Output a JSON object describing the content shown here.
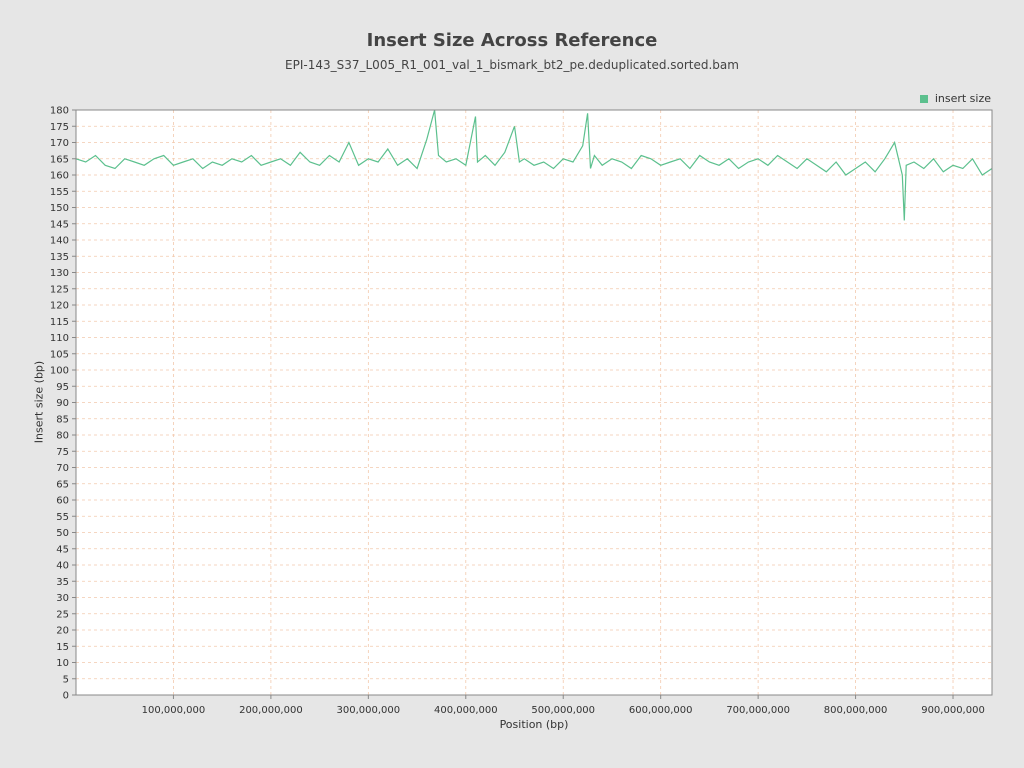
{
  "chart_data": {
    "type": "line",
    "title": "Insert Size Across Reference",
    "subtitle": "EPI-143_S37_L005_R1_001_val_1_bismark_bt2_pe.deduplicated.sorted.bam",
    "xlabel": "Position (bp)",
    "ylabel": "Insert size (bp)",
    "xlim": [
      0,
      940000000
    ],
    "ylim": [
      0,
      180
    ],
    "x_ticks": [
      100000000,
      200000000,
      300000000,
      400000000,
      500000000,
      600000000,
      700000000,
      800000000,
      900000000
    ],
    "x_tick_labels": [
      "100,000,000",
      "200,000,000",
      "300,000,000",
      "400,000,000",
      "500,000,000",
      "600,000,000",
      "700,000,000",
      "800,000,000",
      "900,000,000"
    ],
    "y_ticks": [
      0,
      5,
      10,
      15,
      20,
      25,
      30,
      35,
      40,
      45,
      50,
      55,
      60,
      65,
      70,
      75,
      80,
      85,
      90,
      95,
      100,
      105,
      110,
      115,
      120,
      125,
      130,
      135,
      140,
      145,
      150,
      155,
      160,
      165,
      170,
      175,
      180
    ],
    "grid": true,
    "legend_position": "top-right",
    "series": [
      {
        "name": "insert size",
        "color": "#5cc08e",
        "x": [
          0,
          10000000,
          20000000,
          30000000,
          40000000,
          50000000,
          60000000,
          70000000,
          80000000,
          90000000,
          100000000,
          110000000,
          120000000,
          130000000,
          140000000,
          150000000,
          160000000,
          170000000,
          180000000,
          190000000,
          200000000,
          210000000,
          220000000,
          230000000,
          240000000,
          250000000,
          260000000,
          270000000,
          280000000,
          290000000,
          300000000,
          310000000,
          320000000,
          330000000,
          340000000,
          350000000,
          360000000,
          368000000,
          372000000,
          380000000,
          390000000,
          400000000,
          410000000,
          412000000,
          416000000,
          420000000,
          430000000,
          440000000,
          450000000,
          455000000,
          460000000,
          470000000,
          480000000,
          490000000,
          500000000,
          510000000,
          520000000,
          525000000,
          528000000,
          532000000,
          540000000,
          550000000,
          560000000,
          570000000,
          580000000,
          590000000,
          600000000,
          610000000,
          620000000,
          630000000,
          640000000,
          650000000,
          660000000,
          670000000,
          680000000,
          690000000,
          700000000,
          710000000,
          720000000,
          730000000,
          740000000,
          750000000,
          760000000,
          770000000,
          780000000,
          790000000,
          800000000,
          810000000,
          820000000,
          830000000,
          840000000,
          848000000,
          850000000,
          852000000,
          860000000,
          870000000,
          880000000,
          890000000,
          900000000,
          910000000,
          920000000,
          930000000,
          940000000
        ],
        "y": [
          165,
          164,
          166,
          163,
          162,
          165,
          164,
          163,
          165,
          166,
          163,
          164,
          165,
          162,
          164,
          163,
          165,
          164,
          166,
          163,
          164,
          165,
          163,
          167,
          164,
          163,
          166,
          164,
          170,
          163,
          165,
          164,
          168,
          163,
          165,
          162,
          171,
          180,
          166,
          164,
          165,
          163,
          178,
          164,
          165,
          166,
          163,
          167,
          175,
          164,
          165,
          163,
          164,
          162,
          165,
          164,
          169,
          179,
          162,
          166,
          163,
          165,
          164,
          162,
          166,
          165,
          163,
          164,
          165,
          162,
          166,
          164,
          163,
          165,
          162,
          164,
          165,
          163,
          166,
          164,
          162,
          165,
          163,
          161,
          164,
          160,
          162,
          164,
          161,
          165,
          170,
          160,
          146,
          163,
          164,
          162,
          165,
          161,
          163,
          162,
          165,
          160,
          162
        ]
      }
    ]
  }
}
